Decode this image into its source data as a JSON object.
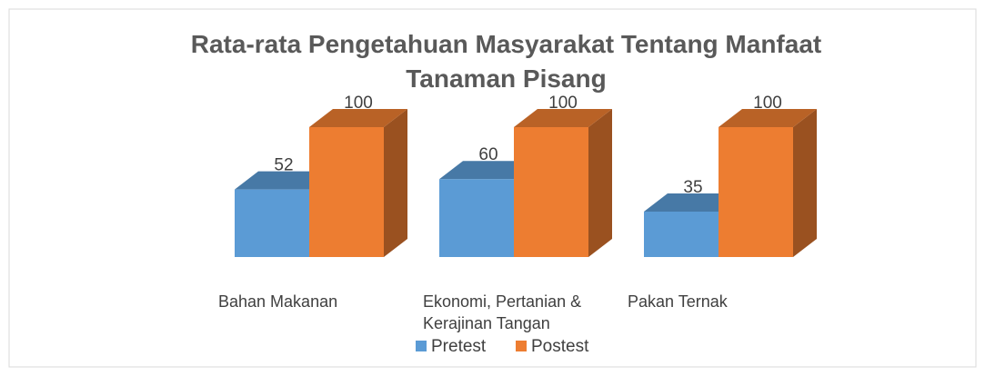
{
  "chart_data": {
    "type": "bar3d",
    "title": "Rata-rata Pengetahuan Masyarakat Tentang Manfaat Tanaman Pisang",
    "categories": [
      "Bahan Makanan",
      "Ekonomi, Pertanian & Kerajinan Tangan",
      "Pakan Ternak"
    ],
    "series": [
      {
        "name": "Pretest",
        "color": "#5b9bd5",
        "values": [
          52,
          60,
          35
        ]
      },
      {
        "name": "Postest",
        "color": "#ed7d31",
        "values": [
          100,
          100,
          100
        ]
      }
    ],
    "legend": "bottom"
  }
}
